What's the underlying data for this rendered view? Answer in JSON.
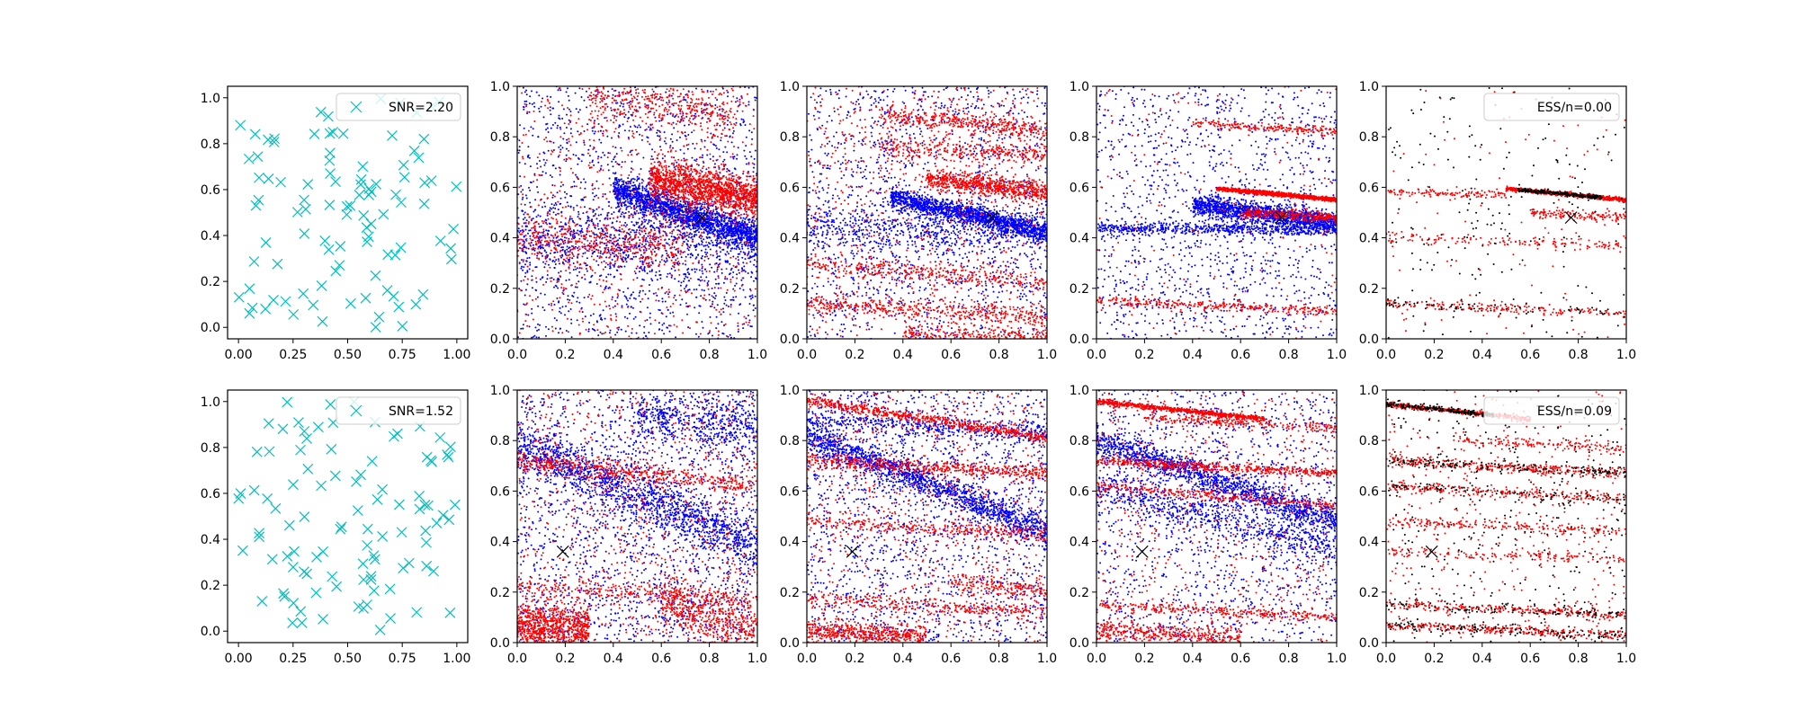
{
  "colors": {
    "cyan_marker": "#00bfbf",
    "blue_points": "#0000ff",
    "red_points": "#ff0000",
    "black_points": "#000000",
    "true_marker": "#000000"
  },
  "chart_data": [
    {
      "type": "scatter",
      "row": 1,
      "panel": 1,
      "title": "",
      "xlabel": "",
      "ylabel": "",
      "xlim": [
        -0.05,
        1.05
      ],
      "ylim": [
        -0.05,
        1.05
      ],
      "xticks": [
        "0.00",
        "0.25",
        "0.50",
        "0.75",
        "1.00"
      ],
      "yticks": [
        "0.0",
        "0.2",
        "0.4",
        "0.6",
        "0.8",
        "1.0"
      ],
      "legend": {
        "label": "SNR=2.20",
        "marker": "x",
        "placement": "top-right"
      },
      "points_generator": {
        "kind": "uniform",
        "count": 100,
        "seed": 11,
        "color": "cyan",
        "marker": "x"
      }
    },
    {
      "type": "scatter",
      "row": 1,
      "panel": 2,
      "title": "",
      "xlabel": "",
      "ylabel": "",
      "xlim": [
        0,
        1
      ],
      "ylim": [
        0,
        1
      ],
      "xticks": [
        "0.0",
        "0.2",
        "0.4",
        "0.6",
        "0.8",
        "1.0"
      ],
      "yticks": [
        "0.0",
        "0.2",
        "0.4",
        "0.6",
        "0.8",
        "1.0"
      ],
      "true_point": [
        0.77,
        0.48
      ],
      "series": [
        {
          "color": "blue",
          "bands": [
            [
              0.72,
              -0.32,
              0.03,
              0.4,
              1.0,
              1800
            ],
            [
              0.4,
              0.0,
              0.08,
              0.0,
              1.0,
              900
            ]
          ],
          "uniform": 1400
        },
        {
          "color": "red",
          "bands": [
            [
              0.72,
              -0.16,
              0.04,
              0.55,
              1.0,
              1400
            ],
            [
              0.4,
              -0.05,
              0.05,
              0.0,
              0.7,
              500
            ],
            [
              0.98,
              -0.1,
              0.05,
              0.3,
              0.9,
              400
            ]
          ],
          "uniform": 700
        }
      ]
    },
    {
      "type": "scatter",
      "row": 1,
      "panel": 3,
      "title": "",
      "xlabel": "",
      "ylabel": "",
      "xlim": [
        0,
        1
      ],
      "ylim": [
        0,
        1
      ],
      "xticks": [
        "0.0",
        "0.2",
        "0.4",
        "0.6",
        "0.8",
        "1.0"
      ],
      "yticks": [
        "0.0",
        "0.2",
        "0.4",
        "0.6",
        "0.8",
        "1.0"
      ],
      "true_point": [
        0.77,
        0.48
      ],
      "series": [
        {
          "color": "blue",
          "bands": [
            [
              0.64,
              -0.22,
              0.02,
              0.35,
              1.0,
              1500
            ],
            [
              0.44,
              -0.02,
              0.05,
              0.0,
              1.0,
              700
            ]
          ],
          "uniform": 1300
        },
        {
          "color": "red",
          "bands": [
            [
              0.68,
              -0.1,
              0.02,
              0.5,
              1.0,
              700
            ],
            [
              0.14,
              -0.05,
              0.02,
              0.0,
              1.0,
              450
            ],
            [
              0.3,
              -0.08,
              0.02,
              0.0,
              1.0,
              350
            ],
            [
              0.92,
              -0.1,
              0.02,
              0.3,
              1.0,
              400
            ],
            [
              0.78,
              -0.05,
              0.02,
              0.3,
              1.0,
              300
            ],
            [
              0.03,
              -0.02,
              0.02,
              0.4,
              1.0,
              250
            ]
          ],
          "uniform": 800
        }
      ]
    },
    {
      "type": "scatter",
      "row": 1,
      "panel": 4,
      "title": "",
      "xlabel": "",
      "ylabel": "",
      "xlim": [
        0,
        1
      ],
      "ylim": [
        0,
        1
      ],
      "xticks": [
        "0.0",
        "0.2",
        "0.4",
        "0.6",
        "0.8",
        "1.0"
      ],
      "yticks": [
        "0.0",
        "0.2",
        "0.4",
        "0.6",
        "0.8",
        "1.0"
      ],
      "true_point": [
        0.77,
        0.48
      ],
      "series": [
        {
          "color": "blue",
          "bands": [
            [
              0.58,
              -0.12,
              0.02,
              0.4,
              1.0,
              1500
            ],
            [
              0.44,
              -0.01,
              0.012,
              0.0,
              1.0,
              600
            ]
          ],
          "uniform": 1300
        },
        {
          "color": "red",
          "bands": [
            [
              0.64,
              -0.09,
              0.004,
              0.5,
              1.0,
              1000
            ],
            [
              0.53,
              -0.05,
              0.01,
              0.6,
              1.0,
              300
            ],
            [
              0.15,
              -0.04,
              0.01,
              0.0,
              1.0,
              300
            ],
            [
              0.88,
              -0.06,
              0.01,
              0.4,
              1.0,
              200
            ]
          ],
          "uniform": 200
        }
      ]
    },
    {
      "type": "scatter",
      "row": 1,
      "panel": 5,
      "title": "",
      "xlabel": "",
      "ylabel": "",
      "xlim": [
        0,
        1
      ],
      "ylim": [
        0,
        1
      ],
      "xticks": [
        "0.0",
        "0.2",
        "0.4",
        "0.6",
        "0.8",
        "1.0"
      ],
      "yticks": [
        "0.0",
        "0.2",
        "0.4",
        "0.6",
        "0.8",
        "1.0"
      ],
      "true_point": [
        0.77,
        0.48
      ],
      "legend": {
        "label": "ESS/n=0.00",
        "marker": "",
        "placement": "top-right"
      },
      "series": [
        {
          "color": "red",
          "bands": [
            [
              0.64,
              -0.09,
              0.004,
              0.5,
              1.0,
              700
            ],
            [
              0.58,
              -0.02,
              0.008,
              0.0,
              0.5,
              120
            ],
            [
              0.14,
              -0.04,
              0.01,
              0.0,
              1.0,
              200
            ],
            [
              0.4,
              -0.03,
              0.012,
              0.0,
              1.0,
              150
            ],
            [
              0.53,
              -0.05,
              0.01,
              0.6,
              1.0,
              150
            ]
          ],
          "uniform": 100
        },
        {
          "color": "black",
          "bands": [
            [
              0.64,
              -0.09,
              0.004,
              0.55,
              0.9,
              250
            ],
            [
              0.14,
              -0.04,
              0.01,
              0.0,
              1.0,
              60
            ]
          ],
          "uniform": 200
        }
      ]
    },
    {
      "type": "scatter",
      "row": 2,
      "panel": 1,
      "title": "",
      "xlabel": "",
      "ylabel": "",
      "xlim": [
        -0.05,
        1.05
      ],
      "ylim": [
        -0.05,
        1.05
      ],
      "xticks": [
        "0.00",
        "0.25",
        "0.50",
        "0.75",
        "1.00"
      ],
      "yticks": [
        "0.0",
        "0.2",
        "0.4",
        "0.6",
        "0.8",
        "1.0"
      ],
      "legend": {
        "label": "SNR=1.52",
        "marker": "x",
        "placement": "top-right"
      },
      "points_generator": {
        "kind": "uniform",
        "count": 100,
        "seed": 29,
        "color": "cyan",
        "marker": "x"
      }
    },
    {
      "type": "scatter",
      "row": 2,
      "panel": 2,
      "title": "",
      "xlabel": "",
      "ylabel": "",
      "xlim": [
        0,
        1
      ],
      "ylim": [
        0,
        1
      ],
      "xticks": [
        "0.0",
        "0.2",
        "0.4",
        "0.6",
        "0.8",
        "1.0"
      ],
      "yticks": [
        "0.0",
        "0.2",
        "0.4",
        "0.6",
        "0.8",
        "1.0"
      ],
      "true_point": [
        0.19,
        0.36
      ],
      "series": [
        {
          "color": "blue",
          "bands": [
            [
              0.78,
              -0.4,
              0.05,
              0.0,
              1.0,
              1400
            ],
            [
              0.95,
              -0.1,
              0.05,
              0.5,
              1.0,
              500
            ]
          ],
          "uniform": 1800
        },
        {
          "color": "red",
          "bands": [
            [
              0.06,
              -0.05,
              0.05,
              0.0,
              0.3,
              900
            ],
            [
              0.72,
              -0.1,
              0.02,
              0.0,
              1.0,
              500
            ],
            [
              0.34,
              -0.3,
              0.05,
              0.6,
              1.0,
              500
            ],
            [
              0.22,
              -0.05,
              0.02,
              0.0,
              1.0,
              300
            ]
          ],
          "uniform": 900
        }
      ]
    },
    {
      "type": "scatter",
      "row": 2,
      "panel": 3,
      "title": "",
      "xlabel": "",
      "ylabel": "",
      "xlim": [
        0,
        1
      ],
      "ylim": [
        0,
        1
      ],
      "xticks": [
        "0.0",
        "0.2",
        "0.4",
        "0.6",
        "0.8",
        "1.0"
      ],
      "yticks": [
        "0.0",
        "0.2",
        "0.4",
        "0.6",
        "0.8",
        "1.0"
      ],
      "true_point": [
        0.19,
        0.36
      ],
      "series": [
        {
          "color": "blue",
          "bands": [
            [
              0.82,
              -0.38,
              0.03,
              0.0,
              1.0,
              1500
            ],
            [
              0.88,
              -0.05,
              0.02,
              0.0,
              1.0,
              400
            ]
          ],
          "uniform": 1700
        },
        {
          "color": "red",
          "bands": [
            [
              0.96,
              -0.15,
              0.01,
              0.0,
              1.0,
              600
            ],
            [
              0.72,
              -0.05,
              0.015,
              0.0,
              1.0,
              500
            ],
            [
              0.05,
              -0.05,
              0.02,
              0.0,
              0.5,
              500
            ],
            [
              0.48,
              -0.05,
              0.015,
              0.0,
              1.0,
              300
            ],
            [
              0.17,
              -0.05,
              0.015,
              0.0,
              1.0,
              300
            ],
            [
              0.3,
              -0.1,
              0.02,
              0.6,
              1.0,
              200
            ]
          ],
          "uniform": 800
        }
      ]
    },
    {
      "type": "scatter",
      "row": 2,
      "panel": 4,
      "title": "",
      "xlabel": "",
      "ylabel": "",
      "xlim": [
        0,
        1
      ],
      "ylim": [
        0,
        1
      ],
      "xticks": [
        "0.0",
        "0.2",
        "0.4",
        "0.6",
        "0.8",
        "1.0"
      ],
      "yticks": [
        "0.0",
        "0.2",
        "0.4",
        "0.6",
        "0.8",
        "1.0"
      ],
      "true_point": [
        0.19,
        0.36
      ],
      "series": [
        {
          "color": "blue",
          "bands": [
            [
              0.8,
              -0.32,
              0.03,
              0.0,
              1.0,
              1400
            ],
            [
              0.62,
              -0.25,
              0.04,
              0.0,
              1.0,
              700
            ]
          ],
          "uniform": 1300
        },
        {
          "color": "red",
          "bands": [
            [
              0.955,
              -0.1,
              0.005,
              0.0,
              0.7,
              700
            ],
            [
              0.72,
              -0.05,
              0.01,
              0.0,
              1.0,
              500
            ],
            [
              0.62,
              -0.08,
              0.01,
              0.0,
              1.0,
              300
            ],
            [
              0.15,
              -0.05,
              0.01,
              0.0,
              1.0,
              300
            ],
            [
              0.05,
              -0.05,
              0.02,
              0.0,
              0.6,
              400
            ],
            [
              0.9,
              -0.05,
              0.01,
              0.2,
              1.0,
              250
            ]
          ],
          "uniform": 600
        }
      ]
    },
    {
      "type": "scatter",
      "row": 2,
      "panel": 5,
      "title": "",
      "xlabel": "",
      "ylabel": "",
      "xlim": [
        0,
        1
      ],
      "ylim": [
        0,
        1
      ],
      "xticks": [
        "0.0",
        "0.2",
        "0.4",
        "0.6",
        "0.8",
        "1.0"
      ],
      "yticks": [
        "0.0",
        "0.2",
        "0.4",
        "0.6",
        "0.8",
        "1.0"
      ],
      "true_point": [
        0.19,
        0.36
      ],
      "legend": {
        "label": "ESS/n=0.09",
        "marker": "",
        "placement": "top-right"
      },
      "series": [
        {
          "color": "red",
          "bands": [
            [
              0.945,
              -0.1,
              0.005,
              0.0,
              0.6,
              400
            ],
            [
              0.72,
              -0.05,
              0.01,
              0.0,
              1.0,
              350
            ],
            [
              0.62,
              -0.05,
              0.01,
              0.0,
              1.0,
              250
            ],
            [
              0.48,
              -0.04,
              0.01,
              0.0,
              1.0,
              200
            ],
            [
              0.36,
              -0.03,
              0.01,
              0.0,
              1.0,
              150
            ],
            [
              0.15,
              -0.04,
              0.01,
              0.0,
              1.0,
              250
            ],
            [
              0.07,
              -0.04,
              0.01,
              0.0,
              1.0,
              300
            ],
            [
              0.82,
              -0.05,
              0.01,
              0.3,
              1.0,
              150
            ]
          ],
          "uniform": 350
        },
        {
          "color": "black",
          "bands": [
            [
              0.945,
              -0.1,
              0.005,
              0.0,
              0.45,
              220
            ],
            [
              0.72,
              -0.05,
              0.01,
              0.0,
              1.0,
              150
            ],
            [
              0.15,
              -0.04,
              0.01,
              0.0,
              1.0,
              100
            ],
            [
              0.07,
              -0.04,
              0.01,
              0.0,
              1.0,
              120
            ],
            [
              0.62,
              -0.05,
              0.01,
              0.0,
              1.0,
              80
            ]
          ],
          "uniform": 350
        }
      ]
    }
  ]
}
